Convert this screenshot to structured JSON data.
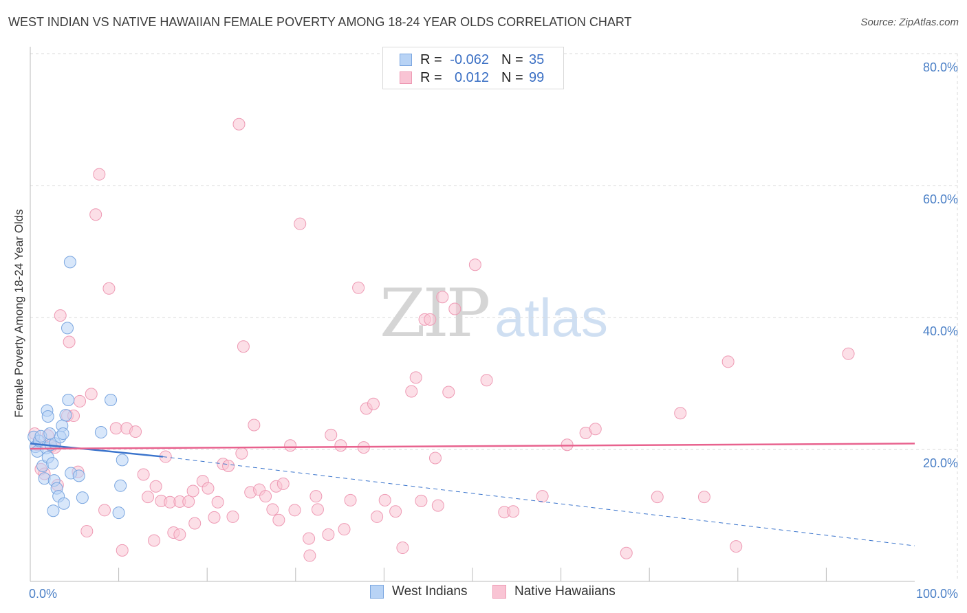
{
  "title": "WEST INDIAN VS NATIVE HAWAIIAN FEMALE POVERTY AMONG 18-24 YEAR OLDS CORRELATION CHART",
  "source": "Source: ZipAtlas.com",
  "watermark": {
    "zip": "ZIP",
    "atlas": "atlas"
  },
  "legend_top": [
    {
      "label": "R =",
      "r": "-0.062",
      "n_label": "N =",
      "n": "35"
    },
    {
      "label": "R =",
      "r": "0.012",
      "n_label": "N =",
      "n": "99"
    }
  ],
  "colors": {
    "west_fill": "#b8d3f5",
    "west_stroke": "#7aa6e0",
    "west_line": "#3a74cc",
    "hawaii_fill": "#f9c4d4",
    "hawaii_stroke": "#ee9ab4",
    "hawaii_line": "#e8628e",
    "tick": "#4a7fc6",
    "grid": "#d8d8d8"
  },
  "chart_data": {
    "type": "scatter",
    "title": "WEST INDIAN VS NATIVE HAWAIIAN FEMALE POVERTY AMONG 18-24 YEAR OLDS CORRELATION CHART",
    "xlabel": "",
    "ylabel": "Female Poverty Among 18-24 Year Olds",
    "xlim": [
      0,
      100
    ],
    "ylim": [
      0,
      80
    ],
    "x_tick_labels": [
      "0.0%",
      "100.0%"
    ],
    "y_ticks": [
      20,
      40,
      60,
      80
    ],
    "y_tick_labels": [
      "20.0%",
      "40.0%",
      "60.0%",
      "80.0%"
    ],
    "grid": true,
    "legend_placement": "top-center",
    "series": [
      {
        "name": "West Indians",
        "r": -0.062,
        "n": 35,
        "trend": {
          "x0": 0,
          "y0": 20.9,
          "x1": 15,
          "y1": 18.9,
          "dashed_to_x": 100,
          "dashed_to_y": 5.4
        },
        "points": [
          [
            0.4,
            21.9
          ],
          [
            0.6,
            20.4
          ],
          [
            0.8,
            19.7
          ],
          [
            1.0,
            21.3
          ],
          [
            1.2,
            22.0
          ],
          [
            1.4,
            17.5
          ],
          [
            1.6,
            15.6
          ],
          [
            1.8,
            20.2
          ],
          [
            2.0,
            18.8
          ],
          [
            2.2,
            22.4
          ],
          [
            1.9,
            25.9
          ],
          [
            2.0,
            25.0
          ],
          [
            2.3,
            20.7
          ],
          [
            2.5,
            17.9
          ],
          [
            2.6,
            10.7
          ],
          [
            2.7,
            15.3
          ],
          [
            2.8,
            20.9
          ],
          [
            3.0,
            14.1
          ],
          [
            3.2,
            12.9
          ],
          [
            3.4,
            21.9
          ],
          [
            3.6,
            23.6
          ],
          [
            3.7,
            22.4
          ],
          [
            3.8,
            11.8
          ],
          [
            4.0,
            25.2
          ],
          [
            4.2,
            38.4
          ],
          [
            4.3,
            27.5
          ],
          [
            4.5,
            48.4
          ],
          [
            4.6,
            16.4
          ],
          [
            5.5,
            16.0
          ],
          [
            5.9,
            12.7
          ],
          [
            8.0,
            22.6
          ],
          [
            9.1,
            27.5
          ],
          [
            10.0,
            10.4
          ],
          [
            10.2,
            14.5
          ],
          [
            10.4,
            18.4
          ]
        ]
      },
      {
        "name": "Native Hawaiians",
        "r": 0.012,
        "n": 99,
        "trend": {
          "x0": 0,
          "y0": 20.1,
          "x1": 100,
          "y1": 20.9
        },
        "points": [
          [
            0.5,
            22.4
          ],
          [
            0.8,
            20.7
          ],
          [
            1.2,
            17.0
          ],
          [
            1.6,
            16.3
          ],
          [
            2.0,
            22.1
          ],
          [
            2.4,
            20.5
          ],
          [
            2.8,
            20.3
          ],
          [
            3.1,
            14.6
          ],
          [
            3.4,
            40.3
          ],
          [
            4.2,
            25.1
          ],
          [
            4.4,
            36.3
          ],
          [
            4.9,
            25.1
          ],
          [
            5.4,
            16.6
          ],
          [
            5.6,
            27.3
          ],
          [
            6.4,
            7.6
          ],
          [
            6.9,
            28.4
          ],
          [
            7.4,
            55.6
          ],
          [
            7.8,
            61.7
          ],
          [
            8.4,
            10.8
          ],
          [
            8.9,
            44.4
          ],
          [
            9.7,
            23.2
          ],
          [
            10.4,
            4.7
          ],
          [
            10.9,
            23.2
          ],
          [
            11.9,
            22.7
          ],
          [
            12.8,
            16.2
          ],
          [
            13.3,
            12.8
          ],
          [
            14.0,
            6.2
          ],
          [
            14.2,
            14.4
          ],
          [
            14.8,
            12.2
          ],
          [
            15.3,
            18.9
          ],
          [
            15.8,
            12.0
          ],
          [
            16.2,
            7.4
          ],
          [
            16.9,
            12.1
          ],
          [
            16.9,
            7.1
          ],
          [
            17.9,
            12.1
          ],
          [
            18.4,
            13.7
          ],
          [
            18.6,
            8.8
          ],
          [
            19.5,
            15.2
          ],
          [
            20.1,
            14.1
          ],
          [
            20.8,
            9.7
          ],
          [
            21.2,
            12.0
          ],
          [
            21.8,
            17.8
          ],
          [
            22.4,
            17.5
          ],
          [
            22.9,
            9.8
          ],
          [
            23.6,
            69.3
          ],
          [
            23.9,
            19.4
          ],
          [
            24.1,
            35.6
          ],
          [
            24.9,
            13.5
          ],
          [
            25.3,
            23.7
          ],
          [
            25.9,
            13.9
          ],
          [
            26.6,
            12.9
          ],
          [
            27.4,
            10.9
          ],
          [
            27.8,
            14.4
          ],
          [
            28.1,
            9.3
          ],
          [
            28.6,
            14.8
          ],
          [
            29.4,
            20.6
          ],
          [
            29.9,
            10.8
          ],
          [
            30.5,
            54.2
          ],
          [
            31.5,
            6.5
          ],
          [
            31.6,
            3.9
          ],
          [
            32.3,
            12.9
          ],
          [
            32.5,
            10.9
          ],
          [
            33.7,
            7.1
          ],
          [
            34.0,
            22.2
          ],
          [
            35.1,
            20.6
          ],
          [
            35.5,
            7.9
          ],
          [
            36.2,
            12.3
          ],
          [
            37.1,
            44.5
          ],
          [
            37.7,
            20.3
          ],
          [
            38.0,
            26.2
          ],
          [
            38.8,
            26.9
          ],
          [
            39.2,
            9.8
          ],
          [
            40.1,
            12.3
          ],
          [
            41.3,
            10.6
          ],
          [
            42.1,
            5.1
          ],
          [
            43.1,
            28.8
          ],
          [
            43.6,
            30.9
          ],
          [
            44.2,
            12.2
          ],
          [
            44.6,
            39.7
          ],
          [
            45.2,
            39.7
          ],
          [
            45.8,
            18.7
          ],
          [
            46.1,
            11.5
          ],
          [
            46.6,
            43.1
          ],
          [
            47.3,
            28.7
          ],
          [
            48.0,
            41.3
          ],
          [
            50.3,
            48.0
          ],
          [
            51.6,
            30.5
          ],
          [
            53.6,
            10.5
          ],
          [
            54.6,
            10.6
          ],
          [
            57.9,
            12.9
          ],
          [
            60.7,
            20.7
          ],
          [
            62.8,
            22.5
          ],
          [
            63.9,
            23.1
          ],
          [
            67.4,
            4.3
          ],
          [
            70.9,
            12.8
          ],
          [
            73.5,
            25.5
          ],
          [
            76.2,
            12.8
          ],
          [
            78.9,
            33.3
          ],
          [
            79.8,
            5.3
          ],
          [
            92.5,
            34.5
          ]
        ]
      }
    ]
  },
  "legend_bottom": [
    {
      "name": "West Indians"
    },
    {
      "name": "Native Hawaiians"
    }
  ]
}
